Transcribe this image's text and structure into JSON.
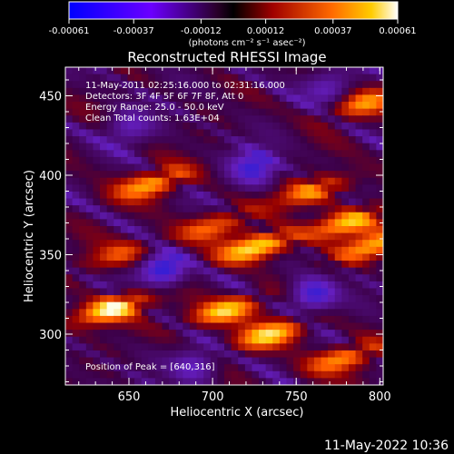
{
  "chart_data": {
    "type": "heatmap",
    "title": "Reconstructed RHESSI Image",
    "xlabel": "Heliocentric X (arcsec)",
    "ylabel": "Heliocentric Y (arcsec)",
    "xlim": [
      612,
      802
    ],
    "ylim": [
      268,
      468
    ],
    "x_ticks": [
      650,
      700,
      750,
      800
    ],
    "y_ticks": [
      300,
      350,
      400,
      450
    ],
    "x_tick_labels": [
      "650",
      "700",
      "750",
      "800"
    ],
    "y_tick_labels": [
      "300",
      "350",
      "400",
      "450"
    ],
    "annotations": [
      "11-May-2011 02:25:16.000 to 02:31:16.000",
      "Detectors: 3F 4F 5F 6F 7F 8F, Att 0",
      "Energy Range: 25.0 - 50.0 keV",
      "Clean    Total counts: 1.63E+04"
    ],
    "peak_label": "Position of Peak = [640,316]",
    "peak_position": [
      640,
      316
    ],
    "colorbar": {
      "min": -0.00061,
      "max": 0.00061,
      "tick_values": [
        -0.00061,
        -0.00037,
        -0.00012,
        0.00012,
        0.00037,
        0.00061
      ],
      "tick_labels": [
        "-0.00061",
        "-0.00037",
        "-0.00012",
        "0.00012",
        "0.00037",
        "0.00061"
      ],
      "unit_label": "(photons cm⁻² s⁻¹ asec⁻²)"
    },
    "bright_blobs": [
      {
        "x": 640,
        "y": 316,
        "level": 1.0
      },
      {
        "x": 727,
        "y": 355,
        "level": 0.95
      },
      {
        "x": 708,
        "y": 315,
        "level": 0.85
      },
      {
        "x": 735,
        "y": 300,
        "level": 0.8
      },
      {
        "x": 780,
        "y": 370,
        "level": 0.8
      },
      {
        "x": 795,
        "y": 355,
        "level": 0.75
      },
      {
        "x": 760,
        "y": 390,
        "level": 0.7
      },
      {
        "x": 665,
        "y": 395,
        "level": 0.75
      },
      {
        "x": 778,
        "y": 285,
        "level": 0.7
      },
      {
        "x": 790,
        "y": 445,
        "level": 0.6
      },
      {
        "x": 700,
        "y": 368,
        "level": 0.55
      },
      {
        "x": 645,
        "y": 350,
        "level": 0.5
      }
    ],
    "dark_blobs": [
      {
        "x": 670,
        "y": 340,
        "level": 1.0
      },
      {
        "x": 760,
        "y": 325,
        "level": 0.9
      },
      {
        "x": 725,
        "y": 405,
        "level": 0.8
      },
      {
        "x": 690,
        "y": 280,
        "level": 0.6
      },
      {
        "x": 650,
        "y": 430,
        "level": 0.5
      },
      {
        "x": 770,
        "y": 455,
        "level": 0.5
      }
    ]
  },
  "footer": {
    "timestamp": "11-May-2022 10:36"
  }
}
